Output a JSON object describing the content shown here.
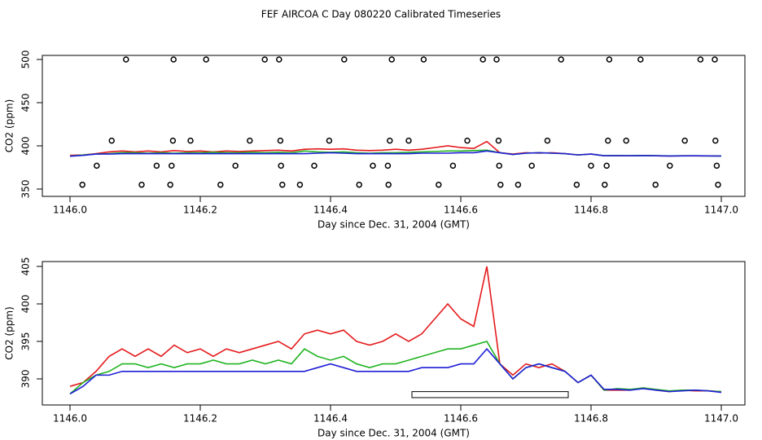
{
  "chart_data": [
    {
      "type": "line",
      "title": "FEF AIRCOA C  Day 080220  Calibrated Timeseries",
      "x_label": "Day since Dec. 31, 2004 (GMT)",
      "y_label": "CO2 (ppm)",
      "xlim": [
        1145.9575,
        1147.03625
      ],
      "ylim": [
        341.5,
        504.7
      ],
      "xticks": [
        {
          "value": 1146,
          "label": "1146.0"
        },
        1146.2,
        1146.4,
        1146.6,
        1146.8,
        {
          "value": 1147,
          "label": "1147.0"
        }
      ],
      "yticks": [
        350,
        400,
        450,
        500
      ],
      "x": [
        1146.0,
        1146.02,
        1146.04,
        1146.06,
        1146.08,
        1146.1,
        1146.12,
        1146.14,
        1146.16,
        1146.18,
        1146.2,
        1146.22,
        1146.24,
        1146.26,
        1146.28,
        1146.3,
        1146.32,
        1146.34,
        1146.36,
        1146.38,
        1146.4,
        1146.42,
        1146.44,
        1146.46,
        1146.48,
        1146.5,
        1146.52,
        1146.54,
        1146.56,
        1146.58,
        1146.6,
        1146.62,
        1146.64,
        1146.66,
        1146.68,
        1146.7,
        1146.72,
        1146.74,
        1146.76,
        1146.78,
        1146.8,
        1146.82,
        1146.84,
        1146.86,
        1146.88,
        1146.9,
        1146.92,
        1146.94,
        1146.96,
        1146.98,
        1147.0
      ],
      "series": [
        {
          "color": "#e41a1c",
          "values": [
            389,
            389.5,
            391,
            393,
            394,
            393,
            394,
            393,
            394.5,
            393.5,
            394,
            393,
            394,
            393.5,
            394,
            394.5,
            395,
            394,
            396,
            396.5,
            396,
            396.5,
            395,
            394.5,
            395,
            396,
            395,
            396,
            398,
            400,
            398,
            397,
            405,
            392,
            390.5,
            392,
            391.5,
            392,
            391,
            389.5,
            390.5,
            388.5,
            388.5,
            388.5,
            388.8,
            388.5,
            388.3,
            388.5,
            388.4,
            388.4,
            388.3
          ]
        },
        {
          "color": "#22b422",
          "values": [
            388,
            389.5,
            390.5,
            391,
            392,
            392,
            391.5,
            392,
            391.5,
            392,
            392,
            392.5,
            392,
            392,
            392.5,
            392,
            392.5,
            392,
            394,
            393,
            392.5,
            393,
            392,
            391.5,
            392,
            392,
            392.5,
            393,
            393.5,
            394,
            394,
            394.5,
            395,
            392,
            390,
            391.5,
            392,
            391.5,
            391,
            389.5,
            390.5,
            388.5,
            388.7,
            388.6,
            388.8,
            388.6,
            388.4,
            388.5,
            388.5,
            388.4,
            388.3
          ]
        },
        {
          "color": "#1f1fd6",
          "values": [
            388,
            389,
            390.5,
            390.5,
            391,
            391,
            391,
            391,
            391,
            391,
            391,
            391,
            391,
            391,
            391,
            391,
            391,
            391,
            391,
            391.5,
            392,
            391.5,
            391,
            391,
            391,
            391,
            391,
            391.5,
            391.5,
            391.5,
            392,
            392,
            394,
            392,
            390,
            391.5,
            392,
            391.5,
            391,
            389.5,
            390.5,
            388.6,
            388.6,
            388.5,
            388.7,
            388.5,
            388.3,
            388.4,
            388.5,
            388.4,
            388.2
          ]
        },
        {
          "type": "scatter",
          "color": "#000000",
          "x": [
            1146.086,
            1146.159,
            1146.209,
            1146.299,
            1146.321,
            1146.421,
            1146.494,
            1146.543,
            1146.634,
            1146.655,
            1146.754,
            1146.828,
            1146.876,
            1146.968,
            1146.99,
            1146.064,
            1146.158,
            1146.185,
            1146.276,
            1146.323,
            1146.398,
            1146.491,
            1146.52,
            1146.61,
            1146.658,
            1146.733,
            1146.826,
            1146.854,
            1146.944,
            1146.991,
            1146.041,
            1146.133,
            1146.156,
            1146.254,
            1146.324,
            1146.375,
            1146.465,
            1146.488,
            1146.588,
            1146.659,
            1146.709,
            1146.8,
            1146.824,
            1146.921,
            1146.993,
            1146.019,
            1146.11,
            1146.154,
            1146.231,
            1146.326,
            1146.353,
            1146.444,
            1146.489,
            1146.566,
            1146.661,
            1146.688,
            1146.778,
            1146.821,
            1146.899,
            1146.995
          ],
          "values": [
            500,
            500,
            500,
            500,
            500,
            500,
            500,
            500,
            500,
            500,
            500,
            500,
            500,
            500,
            500,
            406,
            406,
            406,
            406,
            406,
            406,
            406,
            406,
            406,
            406,
            406,
            406,
            406,
            406,
            406,
            377,
            377,
            377,
            377,
            377,
            377,
            377,
            377,
            377,
            377,
            377,
            377,
            377,
            377,
            377,
            355,
            355,
            355,
            355,
            355,
            355,
            355,
            355,
            355,
            355,
            355,
            355,
            355,
            355,
            355
          ]
        }
      ]
    },
    {
      "type": "line",
      "x_label": "Day since Dec. 31, 2004 (GMT)",
      "y_label": "CO2 (ppm)",
      "xlim": [
        1145.9575,
        1147.03625
      ],
      "ylim": [
        386.52,
        405.65
      ],
      "xticks": [
        {
          "value": 1146,
          "label": "1146.0"
        },
        1146.2,
        1146.4,
        1146.6,
        1146.8,
        {
          "value": 1147,
          "label": "1147.0"
        }
      ],
      "yticks": [
        390,
        395,
        400,
        405
      ],
      "interval": {
        "x": [
          1146.525,
          1146.765
        ],
        "y": [
          387.5,
          388.3
        ]
      },
      "x": [
        1146.0,
        1146.02,
        1146.04,
        1146.06,
        1146.08,
        1146.1,
        1146.12,
        1146.14,
        1146.16,
        1146.18,
        1146.2,
        1146.22,
        1146.24,
        1146.26,
        1146.28,
        1146.3,
        1146.32,
        1146.34,
        1146.36,
        1146.38,
        1146.4,
        1146.42,
        1146.44,
        1146.46,
        1146.48,
        1146.5,
        1146.52,
        1146.54,
        1146.56,
        1146.58,
        1146.6,
        1146.62,
        1146.64,
        1146.66,
        1146.68,
        1146.7,
        1146.72,
        1146.74,
        1146.76,
        1146.78,
        1146.8,
        1146.82,
        1146.84,
        1146.86,
        1146.88,
        1146.9,
        1146.92,
        1146.94,
        1146.96,
        1146.98,
        1147.0
      ],
      "series": [
        {
          "color": "#e41a1c",
          "values": [
            389,
            389.5,
            391,
            393,
            394,
            393,
            394,
            393,
            394.5,
            393.5,
            394,
            393,
            394,
            393.5,
            394,
            394.5,
            395,
            394,
            396,
            396.5,
            396,
            396.5,
            395,
            394.5,
            395,
            396,
            395,
            396,
            398,
            400,
            398,
            397,
            405,
            392,
            390.5,
            392,
            391.5,
            392,
            391,
            389.5,
            390.5,
            388.5,
            388.5,
            388.5,
            388.8,
            388.5,
            388.3,
            388.5,
            388.4,
            388.4,
            388.3
          ]
        },
        {
          "color": "#22b422",
          "values": [
            388,
            389.5,
            390.5,
            391,
            392,
            392,
            391.5,
            392,
            391.5,
            392,
            392,
            392.5,
            392,
            392,
            392.5,
            392,
            392.5,
            392,
            394,
            393,
            392.5,
            393,
            392,
            391.5,
            392,
            392,
            392.5,
            393,
            393.5,
            394,
            394,
            394.5,
            395,
            392,
            390,
            391.5,
            392,
            391.5,
            391,
            389.5,
            390.5,
            388.5,
            388.7,
            388.6,
            388.8,
            388.6,
            388.4,
            388.5,
            388.5,
            388.4,
            388.3
          ]
        },
        {
          "color": "#1f1fd6",
          "values": [
            388,
            389,
            390.5,
            390.5,
            391,
            391,
            391,
            391,
            391,
            391,
            391,
            391,
            391,
            391,
            391,
            391,
            391,
            391,
            391,
            391.5,
            392,
            391.5,
            391,
            391,
            391,
            391,
            391,
            391.5,
            391.5,
            391.5,
            392,
            392,
            394,
            392,
            390,
            391.5,
            392,
            391.5,
            391,
            389.5,
            390.5,
            388.6,
            388.6,
            388.5,
            388.7,
            388.5,
            388.3,
            388.4,
            388.5,
            388.4,
            388.2
          ]
        }
      ]
    }
  ]
}
